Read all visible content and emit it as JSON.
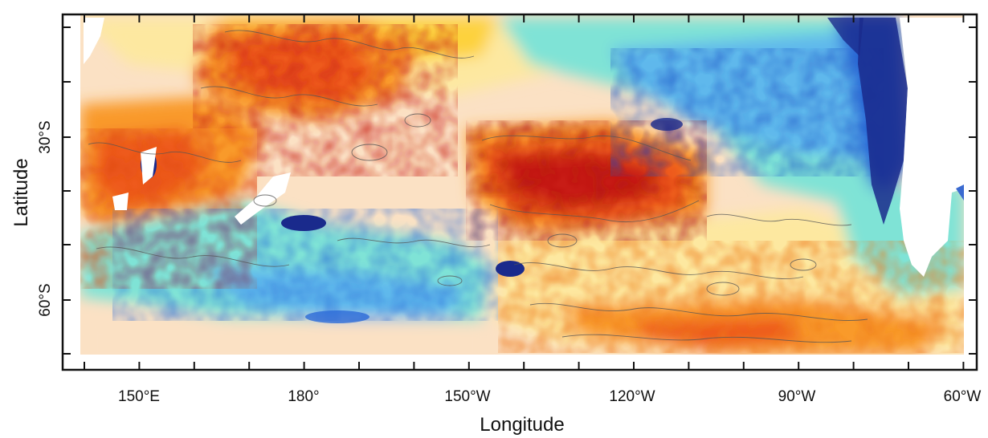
{
  "map": {
    "type": "heatmap",
    "xlabel": "Longitude",
    "ylabel": "Latitude",
    "x_tick_labels": [
      "150°E",
      "180°",
      "150°W",
      "120°W",
      "90°W",
      "60°W"
    ],
    "y_tick_labels": [
      "30°S",
      "60°S"
    ],
    "x_range_deg_east": [
      138,
      300
    ],
    "y_range_deg": [
      -5,
      -68
    ],
    "colormap": [
      "#1a2a8c",
      "#2a6ad8",
      "#5fb8ec",
      "#7fe3d6",
      "#bff0e0",
      "#fbe1c4",
      "#fde8a0",
      "#fdd23c",
      "#f99a2c",
      "#ee5a1c",
      "#c81e12"
    ],
    "land_color": "#ffffff",
    "grid": false
  }
}
